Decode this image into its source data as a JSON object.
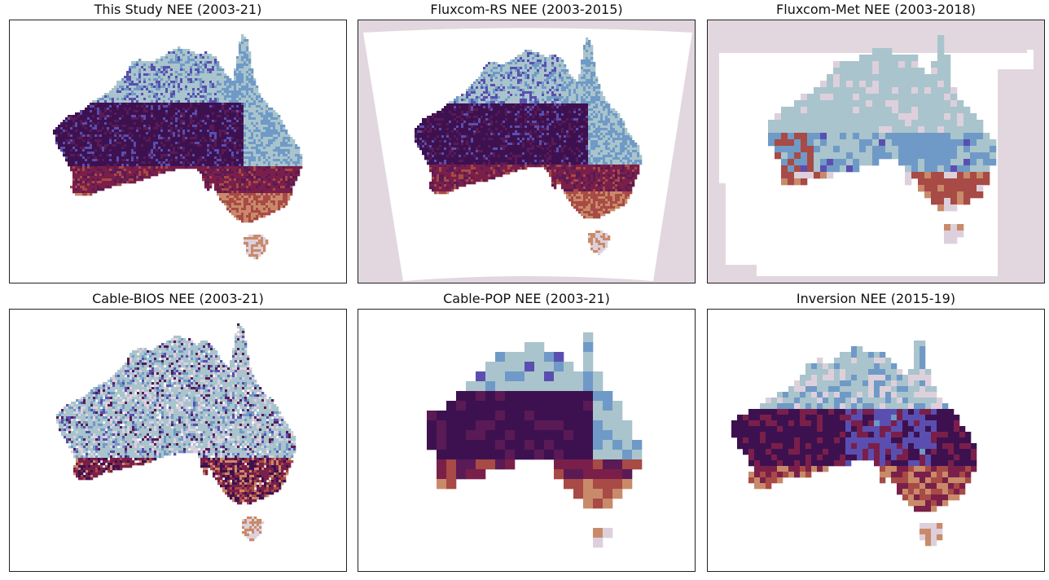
{
  "panels": [
    {
      "title": "This Study NEE (2003-21)",
      "style": "fine",
      "extent": "none"
    },
    {
      "title": "Fluxcom-RS NEE (2003-2015)",
      "style": "fine",
      "extent": "fan"
    },
    {
      "title": "Fluxcom-Met NEE (2003-2018)",
      "style": "coarse",
      "extent": "box"
    },
    {
      "title": "Cable-BIOS NEE (2003-21)",
      "style": "medium",
      "extent": "none"
    },
    {
      "title": "Cable-POP NEE (2003-21)",
      "style": "blocky",
      "extent": "none"
    },
    {
      "title": "Inversion NEE (2015-19)",
      "style": "blocky-mixed",
      "extent": "none"
    }
  ],
  "colors": {
    "background_fill": "#e2d7df",
    "dark_purple": "#3d1150",
    "plum": "#5a1a55",
    "maroon": "#7a1f4a",
    "rust": "#a84a45",
    "tan": "#c98a6a",
    "light_blue_grey": "#a9c4cc",
    "steel_blue": "#6f9ac7",
    "indigo": "#5a4fb0",
    "pale_mauve": "#ddd0dc"
  }
}
